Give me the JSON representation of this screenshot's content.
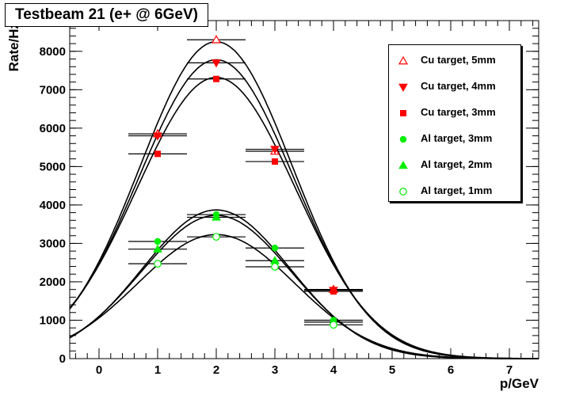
{
  "chart_data": {
    "type": "scatter",
    "title": "Testbeam 21 (e+ @ 6GeV)",
    "xlabel": "p/GeV",
    "ylabel": "Rate/Hz",
    "xlim": [
      -0.5,
      7.5
    ],
    "ylim": [
      0,
      8800
    ],
    "x_ticks": [
      0,
      1,
      2,
      3,
      4,
      5,
      6,
      7
    ],
    "y_ticks": [
      0,
      1000,
      2000,
      3000,
      4000,
      5000,
      6000,
      7000,
      8000
    ],
    "x_tick_labels": [
      "0",
      "1",
      "2",
      "3",
      "4",
      "5",
      "6",
      "7"
    ],
    "y_tick_labels": [
      "0",
      "1000",
      "2000",
      "3000",
      "4000",
      "5000",
      "6000",
      "7000",
      "8000"
    ],
    "x_error": 0.5,
    "legend_position": "top-right",
    "series": [
      {
        "name": "Cu target, 5mm",
        "color": "#ff0000",
        "marker": "open-triangle",
        "x": [
          1,
          2,
          3,
          4
        ],
        "y": [
          5850,
          8300,
          5400,
          1800
        ]
      },
      {
        "name": "Cu target, 4mm",
        "color": "#ff0000",
        "marker": "filled-triangle-down",
        "x": [
          1,
          2,
          3,
          4
        ],
        "y": [
          5800,
          7700,
          5450,
          1780
        ]
      },
      {
        "name": "Cu target, 3mm",
        "color": "#ff0000",
        "marker": "filled-square",
        "x": [
          1,
          2,
          3,
          4
        ],
        "y": [
          5330,
          7280,
          5130,
          1750
        ]
      },
      {
        "name": "Al target, 3mm",
        "color": "#00ee00",
        "marker": "filled-circle",
        "x": [
          1,
          2,
          3,
          4
        ],
        "y": [
          3050,
          3750,
          2880,
          1000
        ]
      },
      {
        "name": "Al target, 2mm",
        "color": "#00ee00",
        "marker": "filled-triangle",
        "x": [
          1,
          2,
          3,
          4
        ],
        "y": [
          2850,
          3680,
          2550,
          950
        ]
      },
      {
        "name": "Al target, 1mm",
        "color": "#00ee00",
        "marker": "open-circle",
        "x": [
          1,
          2,
          3,
          4
        ],
        "y": [
          2470,
          3170,
          2390,
          880
        ]
      }
    ],
    "fits": [
      {
        "type": "gaussian",
        "amplitude": 8250,
        "mean": 2.0,
        "sigma": 1.3
      },
      {
        "type": "gaussian",
        "amplitude": 7780,
        "mean": 2.0,
        "sigma": 1.32
      },
      {
        "type": "gaussian",
        "amplitude": 7320,
        "mean": 2.0,
        "sigma": 1.35
      },
      {
        "type": "gaussian",
        "amplitude": 3870,
        "mean": 2.0,
        "sigma": 1.26
      },
      {
        "type": "gaussian",
        "amplitude": 3730,
        "mean": 2.0,
        "sigma": 1.28
      },
      {
        "type": "gaussian",
        "amplitude": 3230,
        "mean": 2.0,
        "sigma": 1.34
      }
    ]
  }
}
